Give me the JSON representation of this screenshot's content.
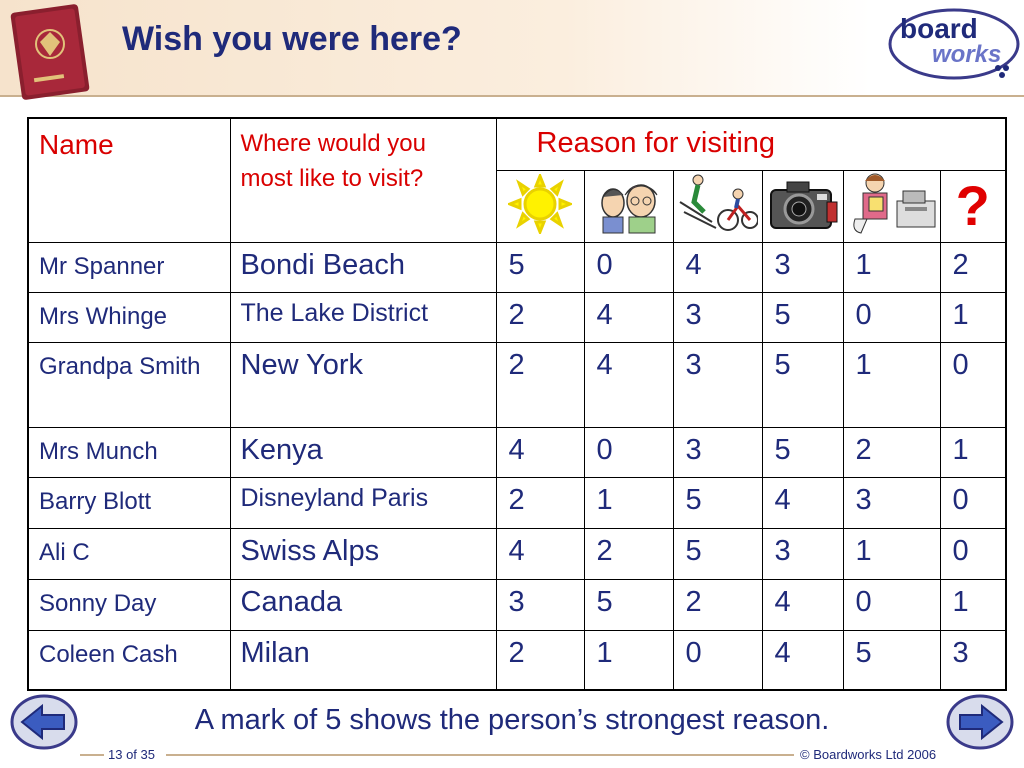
{
  "title": "Wish you were here?",
  "logo": {
    "line1": "board",
    "line2": "works"
  },
  "table": {
    "header": {
      "name": "Name",
      "where_line1": "Where would you",
      "where_line2": "most like to visit?",
      "reason": "Reason for visiting",
      "reason_icons": [
        "sun-icon",
        "old-people-icon",
        "skier-cyclist-icon",
        "camera-icon",
        "shopper-icon",
        "question-mark-icon"
      ],
      "question_mark": "?"
    },
    "rows": [
      {
        "name": "Mr Spanner",
        "place": "Bondi Beach",
        "scores": [
          "5",
          "0",
          "4",
          "3",
          "1",
          "2"
        ]
      },
      {
        "name": "Mrs Whinge",
        "place": "The Lake District",
        "scores": [
          "2",
          "4",
          "3",
          "5",
          "0",
          "1"
        ]
      },
      {
        "name": "Grandpa Smith",
        "place": "New York",
        "scores": [
          "2",
          "4",
          "3",
          "5",
          "1",
          "0"
        ]
      },
      {
        "name": "Mrs Munch",
        "place": "Kenya",
        "scores": [
          "4",
          "0",
          "3",
          "5",
          "2",
          "1"
        ]
      },
      {
        "name": "Barry Blott",
        "place": "Disneyland Paris",
        "scores": [
          "2",
          "1",
          "5",
          "4",
          "3",
          "0"
        ]
      },
      {
        "name": "Ali C",
        "place": "Swiss Alps",
        "scores": [
          "4",
          "2",
          "5",
          "3",
          "1",
          "0"
        ]
      },
      {
        "name": "Sonny Day",
        "place": "Canada",
        "scores": [
          "3",
          "5",
          "2",
          "4",
          "0",
          "1"
        ]
      },
      {
        "name": "Coleen Cash",
        "place": "Milan",
        "scores": [
          "2",
          "1",
          "0",
          "4",
          "5",
          "3"
        ]
      }
    ]
  },
  "caption": "A mark of 5 shows the person’s strongest reason.",
  "footer": {
    "page": "13 of 35",
    "copyright": "© Boardworks Ltd 2006"
  },
  "colors": {
    "text_blue": "#1f2a7a",
    "header_red": "#d90000",
    "header_band": "#f6e3cc"
  }
}
